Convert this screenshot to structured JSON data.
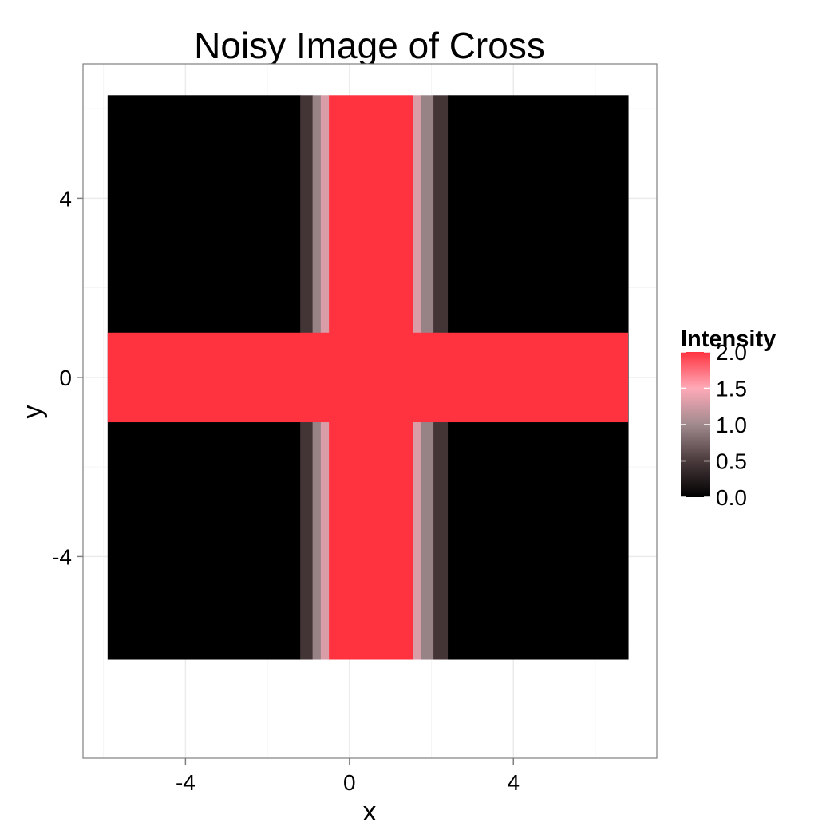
{
  "chart_data": {
    "type": "heatmap",
    "title": "Noisy Image of Cross",
    "xlabel": "x",
    "ylabel": "y",
    "xlim": [
      -6.5,
      7.5
    ],
    "ylim": [
      -8.5,
      7.0
    ],
    "x_ticks": [
      -4,
      0,
      4
    ],
    "y_ticks": [
      -4,
      0,
      4
    ],
    "x_tick_labels": [
      "-4",
      "0",
      "4"
    ],
    "y_tick_labels": [
      "-4",
      "0",
      "4"
    ],
    "grid": true,
    "image_extent": {
      "x": [
        -5.9,
        6.8
      ],
      "y": [
        -6.3,
        6.3
      ]
    },
    "columns": [
      {
        "x0": -5.9,
        "x1": -1.2,
        "value": 0.0
      },
      {
        "x0": -1.2,
        "x1": -0.9,
        "value": 0.45
      },
      {
        "x0": -0.9,
        "x1": -0.7,
        "value": 0.95
      },
      {
        "x0": -0.7,
        "x1": -0.5,
        "value": 1.3
      },
      {
        "x0": -0.5,
        "x1": 1.55,
        "value": 2.0
      },
      {
        "x0": 1.55,
        "x1": 1.75,
        "value": 1.3
      },
      {
        "x0": 1.75,
        "x1": 2.05,
        "value": 0.95
      },
      {
        "x0": 2.05,
        "x1": 2.4,
        "value": 0.45
      },
      {
        "x0": 2.4,
        "x1": 6.8,
        "value": 0.0
      }
    ],
    "horizontal_band": {
      "y0": -1.0,
      "y1": 1.0,
      "value": 2.0
    },
    "legend": {
      "title": "Intensity",
      "placement": "right",
      "min": 0.0,
      "max": 2.0,
      "breaks": [
        2.0,
        1.5,
        1.0,
        0.5,
        0.0
      ],
      "break_labels": [
        "2.0",
        "1.5",
        "1.0",
        "0.5",
        "0.0"
      ],
      "colors": [
        {
          "value": 0.0,
          "color": "#000000"
        },
        {
          "value": 0.5,
          "color": "#4a3a3c"
        },
        {
          "value": 1.0,
          "color": "#a08a8e"
        },
        {
          "value": 1.5,
          "color": "#ffaab8"
        },
        {
          "value": 2.0,
          "color": "#ff3340"
        }
      ]
    },
    "colors": {
      "panel_border": "#7f7f7f",
      "grid_major": "#ebebeb",
      "grid_minor": "#f5f5f5",
      "tick": "#7f7f7f"
    }
  }
}
